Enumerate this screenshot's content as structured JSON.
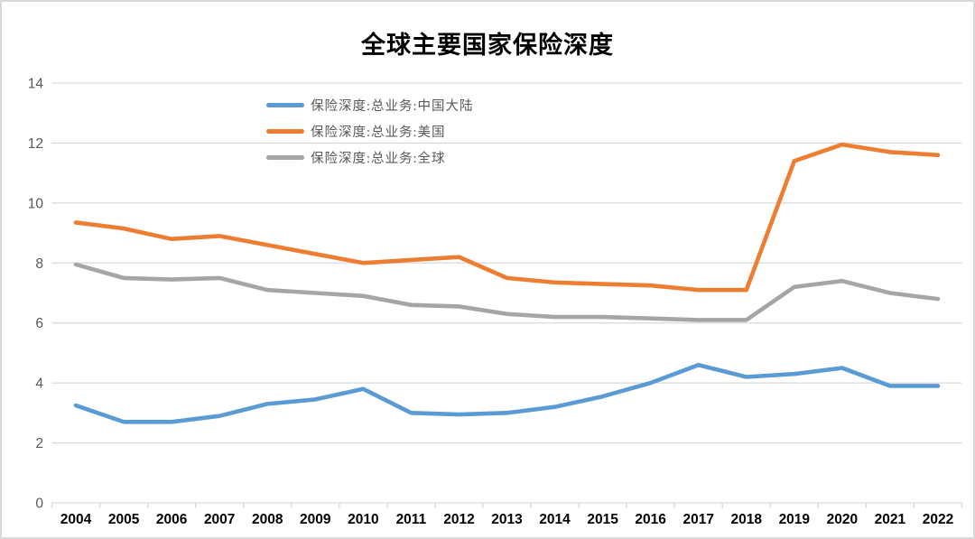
{
  "chart_data": {
    "type": "line",
    "title": "全球主要国家保险深度",
    "x": [
      2004,
      2005,
      2006,
      2007,
      2008,
      2009,
      2010,
      2011,
      2012,
      2013,
      2014,
      2015,
      2016,
      2017,
      2018,
      2019,
      2020,
      2021,
      2022
    ],
    "series": [
      {
        "name": "保险深度:总业务:中国大陆",
        "color": "#5B9BD5",
        "values": [
          3.25,
          2.7,
          2.7,
          2.9,
          3.3,
          3.45,
          3.8,
          3.0,
          2.95,
          3.0,
          3.2,
          3.55,
          4.0,
          4.6,
          4.2,
          4.3,
          4.5,
          3.9,
          3.9
        ]
      },
      {
        "name": "保险深度:总业务:美国",
        "color": "#ED7D31",
        "values": [
          9.35,
          9.15,
          8.8,
          8.9,
          8.6,
          8.3,
          8.0,
          8.1,
          8.2,
          7.5,
          7.35,
          7.3,
          7.25,
          7.1,
          7.1,
          11.4,
          11.95,
          11.7,
          11.6
        ]
      },
      {
        "name": "保险深度:总业务:全球",
        "color": "#A5A5A5",
        "values": [
          7.95,
          7.5,
          7.45,
          7.5,
          7.1,
          7.0,
          6.9,
          6.6,
          6.55,
          6.3,
          6.2,
          6.2,
          6.15,
          6.1,
          6.1,
          7.2,
          7.4,
          7.0,
          6.8
        ]
      }
    ],
    "ylim": [
      0,
      14
    ],
    "yticks": [
      0,
      2,
      4,
      6,
      8,
      10,
      12,
      14
    ],
    "grid": true,
    "legend_position": "inside-upper-left",
    "colors": {
      "grid": "#D9D9D9",
      "frame_border": "#D9D9D9",
      "y_axis_text": "#595959",
      "x_axis_text": "#000000",
      "title_text": "#000000",
      "legend_text": "#595959"
    }
  }
}
